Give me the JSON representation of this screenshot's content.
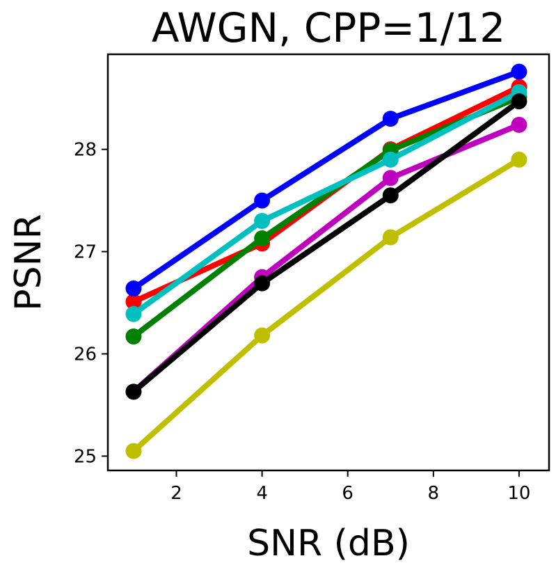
{
  "chart_data": {
    "type": "line",
    "title": "AWGN, CPP=1/12",
    "xlabel": "SNR (dB)",
    "ylabel": "PSNR",
    "x": [
      1,
      4,
      7,
      10
    ],
    "xlim": [
      0.4,
      10.7
    ],
    "ylim": [
      24.86,
      28.93
    ],
    "xticks": [
      2,
      4,
      6,
      8,
      10
    ],
    "yticks": [
      25,
      26,
      27,
      28
    ],
    "grid": false,
    "series": [
      {
        "name": "magenta",
        "color": "#bf00bf",
        "values": [
          25.63,
          26.75,
          27.72,
          28.24
        ]
      },
      {
        "name": "red",
        "color": "#ff0000",
        "values": [
          26.51,
          27.08,
          28.0,
          28.61
        ]
      },
      {
        "name": "green",
        "color": "#008000",
        "values": [
          26.17,
          27.13,
          27.99,
          28.51
        ]
      },
      {
        "name": "yellow",
        "color": "#bfbf00",
        "values": [
          25.05,
          26.18,
          27.14,
          27.9
        ]
      },
      {
        "name": "blue",
        "color": "#0000ff",
        "values": [
          26.64,
          27.5,
          28.3,
          28.76
        ]
      },
      {
        "name": "cyan",
        "color": "#00bfbf",
        "values": [
          26.39,
          27.3,
          27.9,
          28.56
        ]
      },
      {
        "name": "black",
        "color": "#000000",
        "values": [
          25.63,
          26.69,
          27.55,
          28.47
        ]
      }
    ]
  }
}
